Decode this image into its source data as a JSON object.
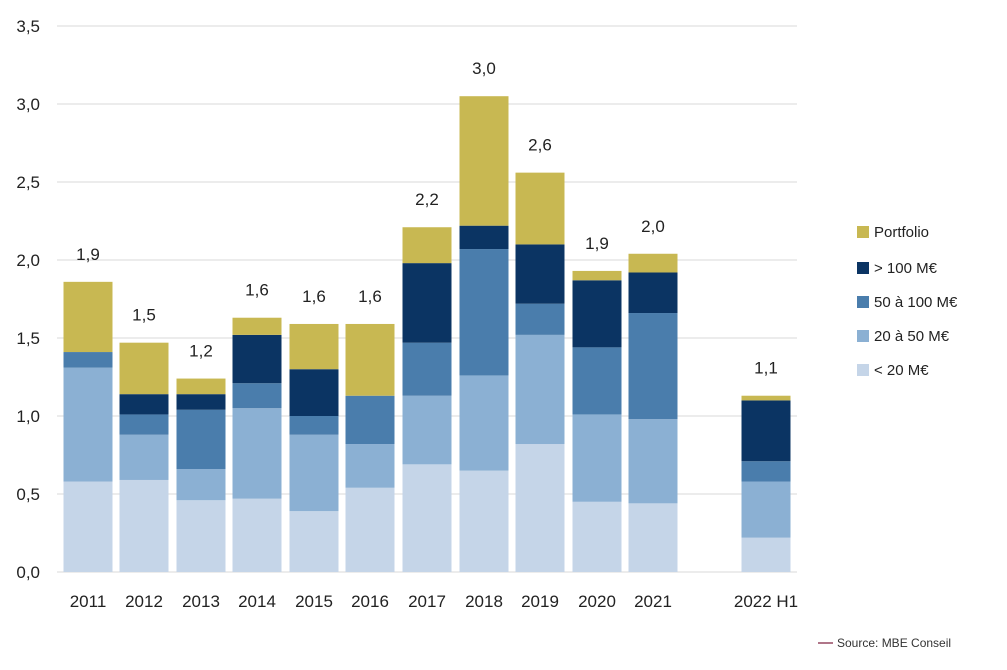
{
  "chart_data": {
    "type": "bar",
    "stacked": true,
    "categories": [
      "2011",
      "2012",
      "2013",
      "2014",
      "2015",
      "2016",
      "2017",
      "2018",
      "2019",
      "2020",
      "2021",
      "2022 H1"
    ],
    "series": [
      {
        "name": "< 20 M€",
        "color": "#c5d5e8",
        "values": [
          0.58,
          0.59,
          0.46,
          0.47,
          0.39,
          0.54,
          0.69,
          0.65,
          0.82,
          0.45,
          0.44,
          0.22
        ]
      },
      {
        "name": "20 à 50 M€",
        "color": "#8bb0d3",
        "values": [
          0.73,
          0.29,
          0.2,
          0.58,
          0.49,
          0.28,
          0.44,
          0.61,
          0.7,
          0.56,
          0.54,
          0.36
        ]
      },
      {
        "name": "50 à 100 M€",
        "color": "#4a7dac",
        "values": [
          0.1,
          0.13,
          0.38,
          0.16,
          0.12,
          0.31,
          0.34,
          0.81,
          0.2,
          0.43,
          0.68,
          0.13
        ]
      },
      {
        "name": "> 100 M€",
        "color": "#0b3463",
        "values": [
          0.0,
          0.13,
          0.1,
          0.31,
          0.3,
          0.0,
          0.51,
          0.15,
          0.38,
          0.43,
          0.26,
          0.39
        ]
      },
      {
        "name": "Portfolio",
        "color": "#c8b852",
        "values": [
          0.45,
          0.33,
          0.1,
          0.11,
          0.29,
          0.46,
          0.23,
          0.83,
          0.46,
          0.06,
          0.12,
          0.03
        ]
      }
    ],
    "totals": [
      "1,9",
      "1,5",
      "1,2",
      "1,6",
      "1,6",
      "1,6",
      "2,2",
      "3,0",
      "2,6",
      "1,9",
      "2,0",
      "1,1"
    ],
    "ylim": [
      0,
      3.5
    ],
    "yticks": [
      0,
      0.5,
      1.0,
      1.5,
      2.0,
      2.5,
      3.0,
      3.5
    ],
    "ytick_labels": [
      "0,0",
      "0,5",
      "1,0",
      "1,5",
      "2,0",
      "2,5",
      "3,0",
      "3,5"
    ],
    "grid": true,
    "legend_order": [
      "Portfolio",
      "> 100 M€",
      "50 à 100 M€",
      "20 à 50 M€",
      "< 20 M€"
    ],
    "legend_position": "right",
    "title": "",
    "xlabel": "",
    "ylabel": ""
  },
  "source": {
    "text": "Source: MBE Conseil"
  },
  "colors": {
    "grid": "#d9d9d9",
    "source_dash": "#7a1a3a"
  }
}
